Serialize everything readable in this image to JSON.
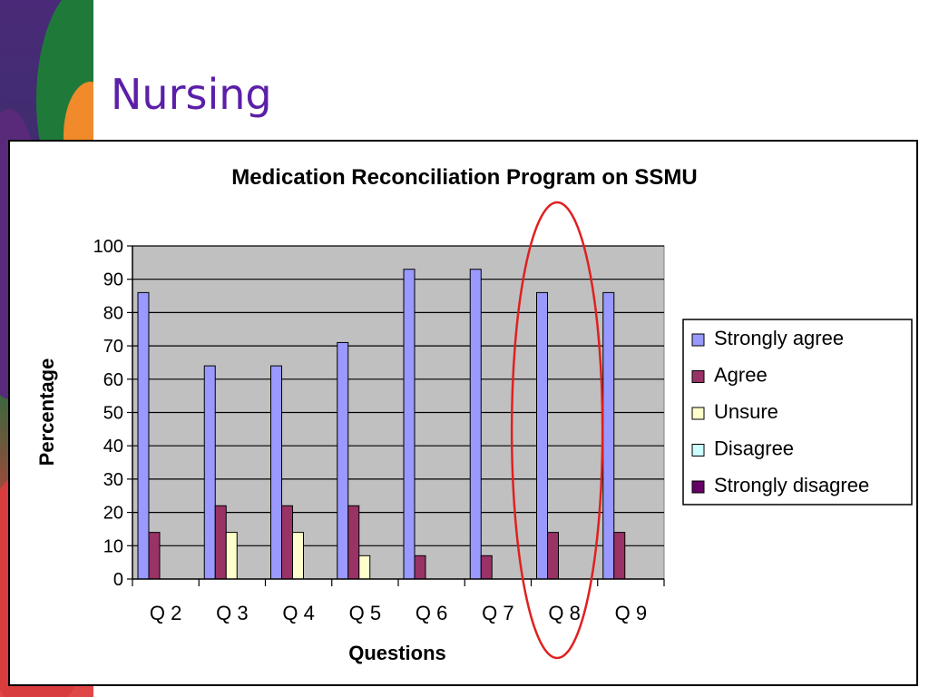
{
  "slide": {
    "title": "Nursing"
  },
  "chart_data": {
    "type": "bar",
    "title": "Medication Reconciliation Program on SSMU",
    "xlabel": "Questions",
    "ylabel": "Percentage",
    "ylim": [
      0,
      100
    ],
    "yticks": [
      "0",
      "10",
      "20",
      "30",
      "40",
      "50",
      "60",
      "70",
      "80",
      "90",
      "100"
    ],
    "grid": true,
    "legend_position": "right",
    "categories": [
      "Q 2",
      "Q 3",
      "Q 4",
      "Q 5",
      "Q 6",
      "Q 7",
      "Q 8",
      "Q 9"
    ],
    "series": [
      {
        "name": "Strongly agree",
        "color": "#9999ff",
        "values": [
          86,
          64,
          64,
          71,
          93,
          93,
          86,
          86
        ]
      },
      {
        "name": "Agree",
        "color": "#993366",
        "values": [
          14,
          22,
          22,
          22,
          7,
          7,
          14,
          14
        ]
      },
      {
        "name": "Unsure",
        "color": "#ffffcc",
        "values": [
          0,
          14,
          14,
          7,
          0,
          0,
          0,
          0
        ]
      },
      {
        "name": "Disagree",
        "color": "#ccffff",
        "values": [
          0,
          0,
          0,
          0,
          0,
          0,
          0,
          0
        ]
      },
      {
        "name": "Strongly disagree",
        "color": "#660066",
        "values": [
          0,
          0,
          0,
          0,
          0,
          0,
          0,
          0
        ]
      }
    ],
    "highlight": {
      "category": "Q 8",
      "shape": "ellipse",
      "color": "#e02020"
    },
    "plot_background": "#c0c0c0"
  }
}
